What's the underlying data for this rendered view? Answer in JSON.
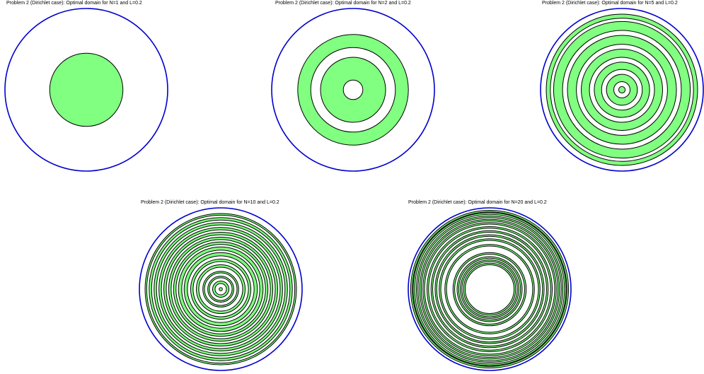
{
  "colors": {
    "boundary": "#0000cc",
    "fill": "#80ff80",
    "ring_stroke": "#000000",
    "background": "#ffffff"
  },
  "chart_data": [
    {
      "type": "diagram",
      "title": "Problem 2 (Dirichlet case): Optimal domain for N=1 and L=0.2",
      "domain_radius": 1,
      "rings": [
        [
          0,
          0.45
        ]
      ]
    },
    {
      "type": "diagram",
      "title": "Problem 2 (Dirichlet case): Optimal domain for N=2 and L=0.2",
      "domain_radius": 1,
      "rings": [
        [
          0.12,
          0.4
        ],
        [
          0.52,
          0.68
        ]
      ]
    },
    {
      "type": "diagram",
      "title": "Problem 2 (Dirichlet case): Optimal domain for N=5 and L=0.2",
      "domain_radius": 1,
      "rings": [
        [
          0,
          0.04
        ],
        [
          0.1,
          0.19
        ],
        [
          0.25,
          0.34
        ],
        [
          0.4,
          0.5
        ],
        [
          0.56,
          0.67
        ],
        [
          0.73,
          0.84
        ],
        [
          0.88,
          0.93
        ]
      ]
    },
    {
      "type": "diagram",
      "title": "Problem 2 (Dirichlet case): Optimal domain for N=10 and L=0.2",
      "domain_radius": 1,
      "rings": [
        [
          0,
          0.02
        ],
        [
          0.07,
          0.1
        ],
        [
          0.14,
          0.16
        ],
        [
          0.2,
          0.22
        ],
        [
          0.27,
          0.3
        ],
        [
          0.34,
          0.37
        ],
        [
          0.41,
          0.45
        ],
        [
          0.48,
          0.52
        ],
        [
          0.55,
          0.58
        ],
        [
          0.61,
          0.64
        ],
        [
          0.67,
          0.7
        ],
        [
          0.73,
          0.76
        ],
        [
          0.79,
          0.82
        ],
        [
          0.85,
          0.88
        ],
        [
          0.91,
          0.93
        ]
      ]
    },
    {
      "type": "diagram",
      "title": "Problem 2 (Dirichlet case): Optimal domain for N=20 and L=0.2",
      "domain_radius": 1,
      "rings": [
        [
          0.3,
          0.32
        ],
        [
          0.34,
          0.36
        ],
        [
          0.38,
          0.4
        ],
        [
          0.43,
          0.45
        ],
        [
          0.53,
          0.55
        ],
        [
          0.6,
          0.62
        ],
        [
          0.65,
          0.67
        ],
        [
          0.7,
          0.72
        ],
        [
          0.75,
          0.77
        ],
        [
          0.8,
          0.82
        ],
        [
          0.84,
          0.86
        ],
        [
          0.88,
          0.9
        ],
        [
          0.92,
          0.94
        ],
        [
          0.95,
          0.97
        ]
      ]
    }
  ]
}
